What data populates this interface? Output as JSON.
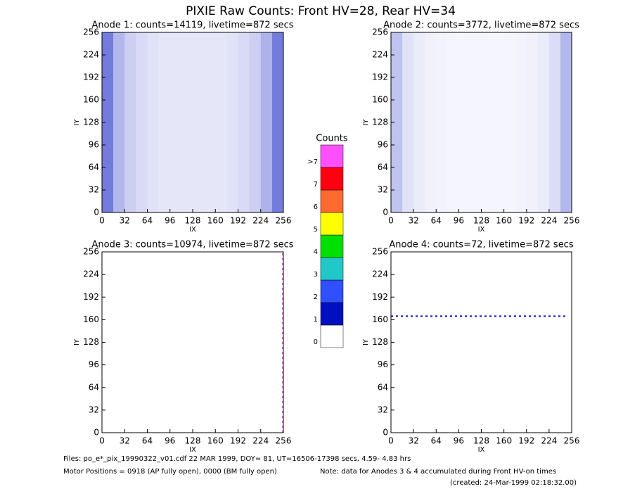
{
  "title": "PIXIE Raw Counts:  Front HV=28, Rear HV=34",
  "chart_data": [
    {
      "type": "heatmap",
      "title": "Anode 1: counts=14119, livetime=872 secs",
      "x_label": "IX",
      "y_label": "IY",
      "xlim": [
        0,
        256
      ],
      "ylim": [
        0,
        256
      ],
      "xticks": [
        0,
        32,
        64,
        96,
        128,
        160,
        192,
        224,
        256
      ],
      "yticks": [
        0,
        32,
        64,
        96,
        128,
        160,
        192,
        224,
        256
      ],
      "color": "#0010c0",
      "xbins": [
        0,
        16,
        32,
        48,
        64,
        80,
        96,
        112,
        128,
        144,
        160,
        176,
        192,
        208,
        224,
        240,
        256
      ],
      "density": [
        0.55,
        0.3,
        0.2,
        0.15,
        0.12,
        0.1,
        0.1,
        0.1,
        0.1,
        0.1,
        0.1,
        0.12,
        0.15,
        0.2,
        0.32,
        0.55
      ],
      "lines": []
    },
    {
      "type": "heatmap",
      "title": "Anode 2: counts=3772, livetime=872 secs",
      "x_label": "IX",
      "y_label": "IY",
      "xlim": [
        0,
        256
      ],
      "ylim": [
        0,
        256
      ],
      "xticks": [
        0,
        32,
        64,
        96,
        128,
        160,
        192,
        224,
        256
      ],
      "yticks": [
        0,
        32,
        64,
        96,
        128,
        160,
        192,
        224,
        256
      ],
      "color": "#0010c0",
      "xbins": [
        0,
        16,
        32,
        48,
        64,
        80,
        96,
        112,
        128,
        144,
        160,
        176,
        192,
        208,
        224,
        240,
        256
      ],
      "density": [
        0.25,
        0.12,
        0.08,
        0.06,
        0.05,
        0.04,
        0.04,
        0.04,
        0.04,
        0.04,
        0.04,
        0.05,
        0.06,
        0.08,
        0.14,
        0.3
      ],
      "lines": []
    },
    {
      "type": "heatmap",
      "title": "Anode 3: counts=10974, livetime=872 secs",
      "x_label": "IX",
      "y_label": "IY",
      "xlim": [
        0,
        256
      ],
      "ylim": [
        0,
        256
      ],
      "xticks": [
        0,
        32,
        64,
        96,
        128,
        160,
        192,
        224,
        256
      ],
      "yticks": [
        0,
        32,
        64,
        96,
        128,
        160,
        192,
        224,
        256
      ],
      "color": "#0010c0",
      "xbins": [],
      "density": [],
      "lines": [
        {
          "color": "#ff50ff",
          "x": [
            255,
            255
          ],
          "y": [
            0,
            256
          ]
        }
      ]
    },
    {
      "type": "heatmap",
      "title": "Anode 4: counts=72, livetime=872 secs",
      "x_label": "IX",
      "y_label": "IY",
      "xlim": [
        0,
        256
      ],
      "ylim": [
        0,
        256
      ],
      "xticks": [
        0,
        32,
        64,
        96,
        128,
        160,
        192,
        224,
        256
      ],
      "yticks": [
        0,
        32,
        64,
        96,
        128,
        160,
        192,
        224,
        256
      ],
      "color": "#0010c0",
      "xbins": [],
      "density": [],
      "lines": [
        {
          "color": "#0010c0",
          "x": [
            0,
            250
          ],
          "y": [
            165,
            165
          ]
        }
      ]
    }
  ],
  "colorbar": {
    "title": "Counts",
    "labels": [
      "0",
      "1",
      "2",
      "3",
      "4",
      "5",
      "6",
      "7",
      ">7"
    ],
    "colors": [
      "#ffffff",
      "#0010c0",
      "#3050ff",
      "#20c8c8",
      "#00e000",
      "#ffff00",
      "#ff6a30",
      "#ff0010",
      "#ff50ff"
    ]
  },
  "footer": {
    "files": "Files: po_e*_pix_19990322_v01.cdf   22 MAR 1999, DOY= 81, UT=16506-17398 secs,  4.59- 4.83 hrs",
    "motor": "Motor Positions = 0918 (AP fully open), 0000 (BM fully open)",
    "note": "Note: data for Anodes 3 & 4 accumulated during Front HV-on times",
    "created": "(created: 24-Mar-1999 02:18:32.00)"
  }
}
